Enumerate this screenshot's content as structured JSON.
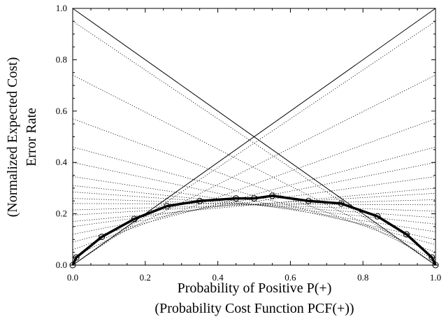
{
  "chart_data": {
    "type": "line",
    "xlabel": "Probability of Positive P(+)",
    "xlabel2": "(Probability Cost Function PCF(+))",
    "ylabel": "Error Rate",
    "ylabel2": "(Normalized Expected Cost)",
    "xlim": [
      0,
      1
    ],
    "ylim": [
      0,
      1
    ],
    "xticks": [
      "0.0",
      "0.2",
      "0.4",
      "0.6",
      "0.8",
      "1.0"
    ],
    "yticks": [
      "0.0",
      "0.2",
      "0.4",
      "0.6",
      "0.8",
      "1.0"
    ],
    "trivial_lines": [
      {
        "x": [
          0,
          1
        ],
        "y": [
          0,
          1
        ]
      },
      {
        "x": [
          0,
          1
        ],
        "y": [
          1,
          0
        ]
      }
    ],
    "cost_lines": [
      {
        "y0": 0.95,
        "y1": 0.0
      },
      {
        "y0": 0.74,
        "y1": 0.02
      },
      {
        "y0": 0.57,
        "y1": 0.05
      },
      {
        "y0": 0.46,
        "y1": 0.08
      },
      {
        "y0": 0.4,
        "y1": 0.1
      },
      {
        "y0": 0.345,
        "y1": 0.13
      },
      {
        "y0": 0.31,
        "y1": 0.16
      },
      {
        "y0": 0.285,
        "y1": 0.185
      },
      {
        "y0": 0.26,
        "y1": 0.21
      },
      {
        "y0": 0.24,
        "y1": 0.235
      },
      {
        "y0": 0.215,
        "y1": 0.255
      },
      {
        "y0": 0.195,
        "y1": 0.28
      },
      {
        "y0": 0.17,
        "y1": 0.3
      },
      {
        "y0": 0.15,
        "y1": 0.345
      },
      {
        "y0": 0.12,
        "y1": 0.4
      },
      {
        "y0": 0.09,
        "y1": 0.46
      },
      {
        "y0": 0.06,
        "y1": 0.57
      },
      {
        "y0": 0.03,
        "y1": 0.74
      },
      {
        "y0": 0.0,
        "y1": 0.95
      }
    ],
    "series": [
      {
        "x": [
          0.0,
          0.01,
          0.08,
          0.17,
          0.26,
          0.35,
          0.45,
          0.5,
          0.55,
          0.65,
          0.74,
          0.84,
          0.92,
          0.99,
          1.0
        ],
        "y": [
          0.0,
          0.03,
          0.11,
          0.18,
          0.23,
          0.25,
          0.26,
          0.26,
          0.27,
          0.25,
          0.24,
          0.19,
          0.12,
          0.03,
          0.0
        ]
      }
    ]
  }
}
